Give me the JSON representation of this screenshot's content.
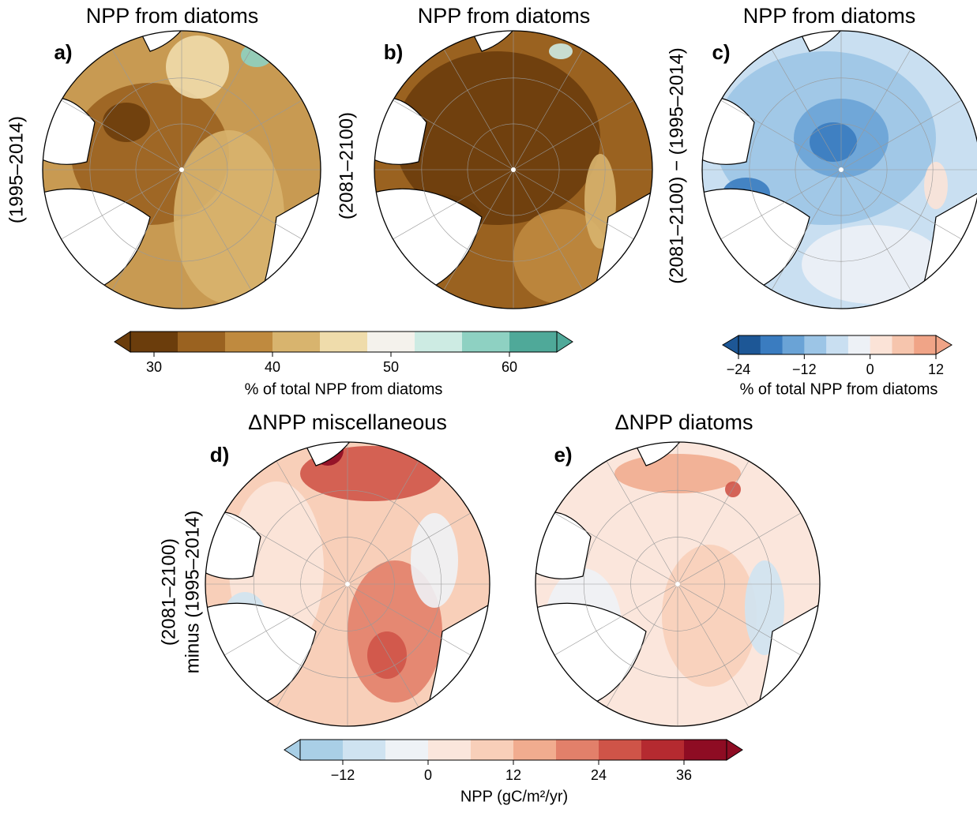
{
  "panels": [
    {
      "label": "a)",
      "title": "NPP from diatoms",
      "side_label": [
        "(1995–2014)"
      ]
    },
    {
      "label": "b)",
      "title": "NPP from diatoms",
      "side_label": [
        "(2081–2100)"
      ]
    },
    {
      "label": "c)",
      "title": "NPP from diatoms",
      "side_label": [
        "(2081–2100) − (1995–2014)"
      ]
    },
    {
      "label": "d)",
      "title": "ΔNPP miscellaneous",
      "side_label": [
        "(2081–2100)",
        "minus (1995–2014)"
      ]
    },
    {
      "label": "e)",
      "title": "ΔNPP diatoms",
      "side_label": []
    }
  ],
  "colorbars": [
    {
      "label": "% of total NPP from diatoms",
      "range": [
        28,
        64
      ],
      "colors": [
        "#6b3d0c",
        "#9a6220",
        "#bf8a3f",
        "#d8b46e",
        "#efdcab",
        "#f4f2ec",
        "#cdebe3",
        "#8ed1c2",
        "#4fa999"
      ],
      "ticks": [
        30,
        40,
        50,
        60
      ]
    },
    {
      "label": "% of total NPP from diatoms",
      "range": [
        -24,
        12
      ],
      "colors": [
        "#1d5796",
        "#3a7cc0",
        "#6aa3d6",
        "#9cc5e6",
        "#c9dff1",
        "#edf1f6",
        "#fbe3d7",
        "#f6c5ad",
        "#f0a487"
      ],
      "ticks": [
        {
          "value": -24,
          "label": "−24"
        },
        {
          "value": -12,
          "label": "−12"
        },
        0,
        12
      ]
    },
    {
      "label": "NPP (gC/m²/yr)",
      "range": [
        -18,
        42
      ],
      "colors": [
        "#a9cfe6",
        "#cfe3f1",
        "#eef2f6",
        "#fbe6dc",
        "#f8cfb9",
        "#f1ac8f",
        "#e2806a",
        "#cf5448",
        "#b52a30",
        "#8e0c23"
      ],
      "ticks": [
        {
          "value": -12,
          "label": "−12"
        },
        0,
        12,
        24,
        36
      ]
    }
  ]
}
